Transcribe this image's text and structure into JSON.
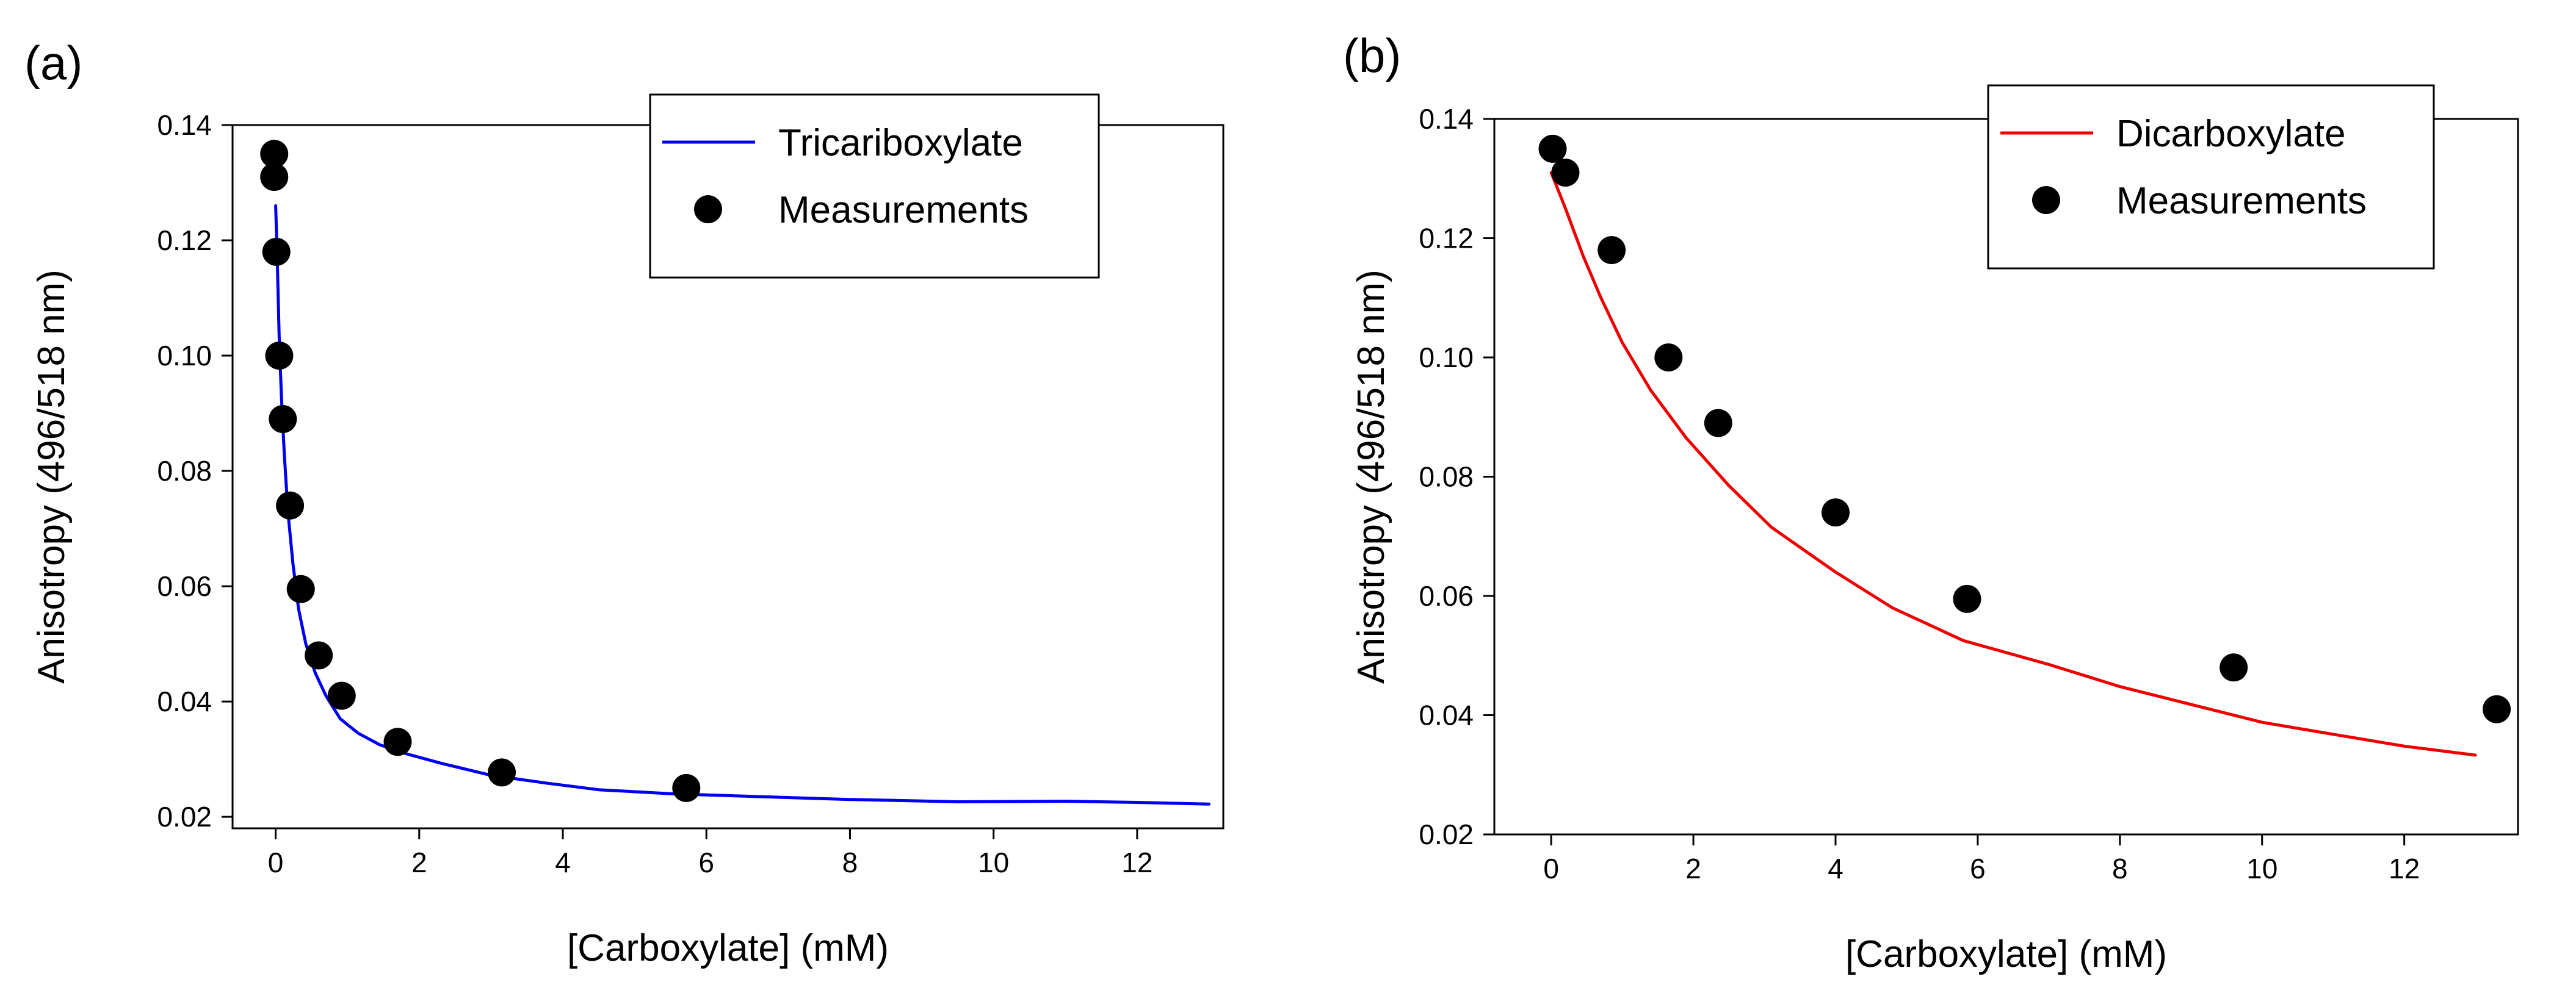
{
  "chart_data": [
    {
      "panel_label": "(a)",
      "type": "scatter",
      "xlabel": "[Carboxylate] (mM)",
      "ylabel": "Anisotropy (496/518 nm)",
      "xlim": [
        -0.6,
        13.2
      ],
      "ylim": [
        0.018,
        0.14
      ],
      "xticks": [
        0,
        2,
        4,
        6,
        8,
        10,
        12
      ],
      "yticks": [
        0.02,
        0.04,
        0.06,
        0.08,
        0.1,
        0.12,
        0.14
      ],
      "ytick_labels": [
        "0.02",
        "0.04",
        "0.06",
        "0.08",
        "0.10",
        "0.12",
        "0.14"
      ],
      "grid": false,
      "legend_position": "top-right",
      "series": [
        {
          "name": "Tricariboxylate",
          "kind": "line",
          "color": "#0000ee",
          "x": [
            0,
            0.02,
            0.05,
            0.08,
            0.12,
            0.17,
            0.24,
            0.32,
            0.42,
            0.55,
            0.7,
            0.9,
            1.15,
            1.45,
            1.8,
            2.3,
            3.0,
            3.8,
            4.5,
            5.5,
            6.5,
            8.0,
            9.5,
            11.0,
            12.0,
            13.0
          ],
          "y": [
            0.126,
            0.118,
            0.103,
            0.093,
            0.083,
            0.073,
            0.064,
            0.056,
            0.05,
            0.045,
            0.041,
            0.037,
            0.0345,
            0.0325,
            0.031,
            0.0293,
            0.0272,
            0.0258,
            0.0247,
            0.024,
            0.0236,
            0.023,
            0.0226,
            0.0227,
            0.0225,
            0.0222
          ]
        },
        {
          "name": "Measurements",
          "kind": "marker",
          "color": "#000000",
          "x": [
            -0.02,
            -0.02,
            0.01,
            0.05,
            0.1,
            0.2,
            0.35,
            0.6,
            0.92,
            1.7,
            3.15,
            5.72
          ],
          "y": [
            0.135,
            0.131,
            0.118,
            0.1,
            0.089,
            0.074,
            0.0595,
            0.048,
            0.041,
            0.033,
            0.0277,
            0.025
          ]
        }
      ]
    },
    {
      "panel_label": "(b)",
      "type": "scatter",
      "xlabel": "[Carboxylate] (mM)",
      "ylabel": "Anisotropy (496/518 nm)",
      "xlim": [
        -0.8,
        13.6
      ],
      "ylim": [
        0.02,
        0.14
      ],
      "xticks": [
        0,
        2,
        4,
        6,
        8,
        10,
        12
      ],
      "yticks": [
        0.02,
        0.04,
        0.06,
        0.08,
        0.1,
        0.12,
        0.14
      ],
      "ytick_labels": [
        "0.02",
        "0.04",
        "0.06",
        "0.08",
        "0.10",
        "0.12",
        "0.14"
      ],
      "grid": false,
      "legend_position": "top-right",
      "series": [
        {
          "name": "Dicarboxylate",
          "kind": "line",
          "color": "#ee0000",
          "x": [
            0,
            0.2,
            0.45,
            0.7,
            1.0,
            1.4,
            1.9,
            2.5,
            3.1,
            4.0,
            4.8,
            5.8,
            7.0,
            8.0,
            9.0,
            10.0,
            11.0,
            12.0,
            13.0
          ],
          "y": [
            0.131,
            0.125,
            0.117,
            0.11,
            0.1025,
            0.0945,
            0.0865,
            0.0785,
            0.0715,
            0.064,
            0.058,
            0.0525,
            0.0485,
            0.0448,
            0.0418,
            0.0388,
            0.0368,
            0.0348,
            0.0333
          ]
        },
        {
          "name": "Measurements",
          "kind": "marker",
          "color": "#000000",
          "x": [
            0.02,
            0.2,
            0.85,
            1.65,
            2.35,
            4.0,
            5.85,
            9.6,
            13.3
          ],
          "y": [
            0.135,
            0.131,
            0.118,
            0.1,
            0.089,
            0.074,
            0.0595,
            0.048,
            0.041
          ]
        }
      ]
    }
  ]
}
